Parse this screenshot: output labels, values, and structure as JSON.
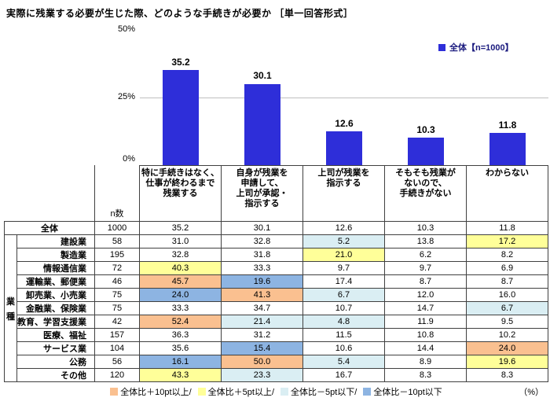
{
  "title": "実際に残業する必要が生じた際、どのような手続きが必要か ［単一回答形式］",
  "chart_data": {
    "type": "bar",
    "title": "実際に残業する必要が生じた際、どのような手続きが必要か ［単一回答形式］",
    "series_name": "全体【n=1000】",
    "categories": [
      "特に手続きはなく、仕事が終わるまで残業する",
      "自身が残業を申請して、上司が承認・指示する",
      "上司が残業を指示する",
      "そもそも残業がないので、手続きがない",
      "わからない"
    ],
    "values": [
      35.2,
      30.1,
      12.6,
      10.3,
      11.8
    ],
    "ylim": [
      0,
      50
    ],
    "ytick_labels": [
      "50%",
      "25%",
      "0%"
    ],
    "grid": "horizontal line at 25%",
    "legend_position": "top-right",
    "bar_color": "#2E2ED9"
  },
  "table": {
    "n_header": "n数",
    "group_label": "業種",
    "header_lines": [
      [
        "特に手続きはなく、",
        "仕事が終わるまで",
        "残業する"
      ],
      [
        "自身が残業を",
        "申請して、",
        "上司が承認・",
        "指示する"
      ],
      [
        "上司が残業を",
        "指示する"
      ],
      [
        "そもそも残業が",
        "ないので、",
        "手続きがない"
      ],
      [
        "わからない"
      ]
    ],
    "rows": [
      {
        "label": "全体",
        "n": "1000",
        "values": [
          "35.2",
          "30.1",
          "12.6",
          "10.3",
          "11.8"
        ],
        "marks": [
          "",
          "",
          "",
          "",
          ""
        ]
      },
      {
        "label": "建設業",
        "n": "58",
        "values": [
          "31.0",
          "32.8",
          "5.2",
          "13.8",
          "17.2"
        ],
        "marks": [
          "",
          "",
          "minus5",
          "",
          "plus5"
        ]
      },
      {
        "label": "製造業",
        "n": "195",
        "values": [
          "32.8",
          "31.8",
          "21.0",
          "6.2",
          "8.2"
        ],
        "marks": [
          "",
          "",
          "plus5",
          "",
          ""
        ]
      },
      {
        "label": "情報通信業",
        "n": "72",
        "values": [
          "40.3",
          "33.3",
          "9.7",
          "9.7",
          "6.9"
        ],
        "marks": [
          "plus5",
          "",
          "",
          "",
          ""
        ]
      },
      {
        "label": "運輸業、郵便業",
        "n": "46",
        "values": [
          "45.7",
          "19.6",
          "17.4",
          "8.7",
          "8.7"
        ],
        "marks": [
          "plus10",
          "minus10",
          "",
          "",
          ""
        ]
      },
      {
        "label": "卸売業、小売業",
        "n": "75",
        "values": [
          "24.0",
          "41.3",
          "6.7",
          "12.0",
          "16.0"
        ],
        "marks": [
          "minus10",
          "plus10",
          "minus5",
          "",
          ""
        ]
      },
      {
        "label": "金融業、保険業",
        "n": "75",
        "values": [
          "33.3",
          "34.7",
          "10.7",
          "14.7",
          "6.7"
        ],
        "marks": [
          "",
          "",
          "",
          "",
          "minus5"
        ]
      },
      {
        "label": "教育、学習支援業",
        "n": "42",
        "values": [
          "52.4",
          "21.4",
          "4.8",
          "11.9",
          "9.5"
        ],
        "marks": [
          "plus10",
          "minus5",
          "minus5",
          "",
          ""
        ]
      },
      {
        "label": "医療、福祉",
        "n": "157",
        "values": [
          "36.3",
          "31.2",
          "11.5",
          "10.8",
          "10.2"
        ],
        "marks": [
          "",
          "",
          "",
          "",
          ""
        ]
      },
      {
        "label": "サービス業",
        "n": "104",
        "values": [
          "35.6",
          "15.4",
          "10.6",
          "14.4",
          "24.0"
        ],
        "marks": [
          "",
          "minus10",
          "",
          "",
          "plus10"
        ]
      },
      {
        "label": "公務",
        "n": "56",
        "values": [
          "16.1",
          "50.0",
          "5.4",
          "8.9",
          "19.6"
        ],
        "marks": [
          "minus10",
          "plus10",
          "minus5",
          "",
          "plus5"
        ]
      },
      {
        "label": "その他",
        "n": "120",
        "values": [
          "43.3",
          "23.3",
          "16.7",
          "8.3",
          "8.3"
        ],
        "marks": [
          "plus5",
          "minus5",
          "",
          "",
          ""
        ]
      }
    ]
  },
  "colors": {
    "plus10": "#FAC090",
    "plus5": "#FFFF99",
    "minus5": "#DAEEF3",
    "minus10": "#8DB4E2",
    "bar": "#2E2ED9"
  },
  "footer": {
    "items": [
      {
        "mark": "plus10",
        "label": "全体比＋10pt以上/"
      },
      {
        "mark": "plus5",
        "label": "全体比＋5pt以上/"
      },
      {
        "mark": "minus5",
        "label": "全体比－5pt以下/"
      },
      {
        "mark": "minus10",
        "label": "全体比－10pt以下"
      }
    ],
    "unit": "（%）"
  }
}
